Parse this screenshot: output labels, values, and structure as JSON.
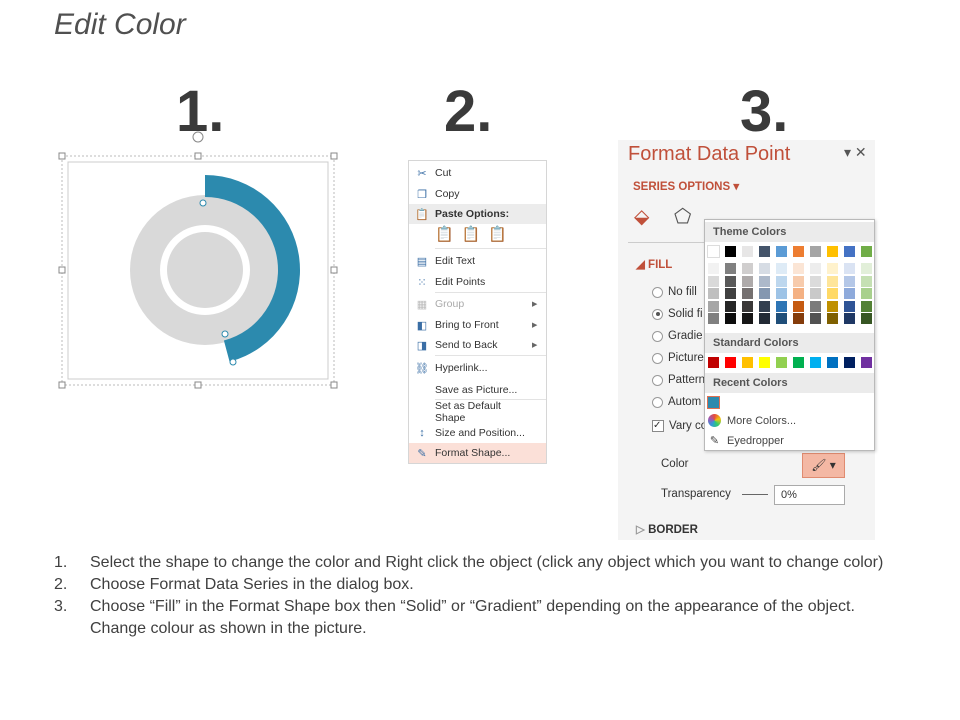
{
  "title": "Edit Color",
  "steps_numbers": [
    "1.",
    "2.",
    "3."
  ],
  "accent": "#2c8aae",
  "context_menu": {
    "items": [
      {
        "label": "Cut",
        "icon": "scissors-icon"
      },
      {
        "label": "Copy",
        "icon": "copy-icon"
      },
      {
        "label": "Paste Options:",
        "icon": "paste-icon",
        "header": true
      },
      {
        "label": "Edit Text",
        "icon": "edit-text-icon"
      },
      {
        "label": "Edit Points",
        "icon": "edit-points-icon"
      },
      {
        "label": "Group",
        "icon": "group-icon",
        "disabled": true,
        "submenu": true
      },
      {
        "label": "Bring to Front",
        "icon": "bring-front-icon",
        "submenu": true
      },
      {
        "label": "Send to Back",
        "icon": "send-back-icon",
        "submenu": true
      },
      {
        "label": "Hyperlink...",
        "icon": "hyperlink-icon"
      },
      {
        "label": "Save as Picture...",
        "icon": ""
      },
      {
        "label": "Set as Default Shape",
        "icon": ""
      },
      {
        "label": "Size and Position...",
        "icon": "size-position-icon"
      },
      {
        "label": "Format Shape...",
        "icon": "format-shape-icon",
        "highlighted": true
      }
    ]
  },
  "format_panel": {
    "title": "Format Data Point",
    "section": "SERIES OPTIONS",
    "fill_label": "FILL",
    "fill_options": [
      "No fill",
      "Solid fi",
      "Gradie",
      "Picture",
      "Pattern",
      "Autom"
    ],
    "selected_fill": 1,
    "vary_label": "Vary co",
    "color_label": "Color",
    "transparency_label": "Transparency",
    "transparency_value": "0%",
    "border_label": "BORDER"
  },
  "palette": {
    "theme_label": "Theme Colors",
    "standard_label": "Standard Colors",
    "recent_label": "Recent Colors",
    "more_colors": "More Colors...",
    "eyedropper": "Eyedropper",
    "theme_top": [
      "#ffffff",
      "#000000",
      "#e7e6e6",
      "#44546a",
      "#5b9bd5",
      "#ed7d31",
      "#a5a5a5",
      "#ffc000",
      "#4472c4",
      "#70ad47"
    ],
    "theme_shades": [
      [
        "#f2f2f2",
        "#d9d9d9",
        "#bfbfbf",
        "#a6a6a6",
        "#808080"
      ],
      [
        "#808080",
        "#595959",
        "#404040",
        "#262626",
        "#0d0d0d"
      ],
      [
        "#d0cece",
        "#aeaaaa",
        "#757070",
        "#3a3838",
        "#171616"
      ],
      [
        "#d6dce4",
        "#adb9ca",
        "#8497b0",
        "#333f4f",
        "#222a35"
      ],
      [
        "#deebf6",
        "#bdd7ee",
        "#9dc3e6",
        "#2e75b5",
        "#1f4e79"
      ],
      [
        "#fbe5d5",
        "#f7cbac",
        "#f4b183",
        "#c55a11",
        "#843c0b"
      ],
      [
        "#ededed",
        "#dbdbdb",
        "#c9c9c9",
        "#7b7b7b",
        "#525252"
      ],
      [
        "#fff2cc",
        "#fee599",
        "#ffd965",
        "#bf9000",
        "#7f6000"
      ],
      [
        "#dae3f3",
        "#b4c7e7",
        "#8eaadb",
        "#2f5496",
        "#1f3864"
      ],
      [
        "#e2efd9",
        "#c5e0b3",
        "#a8d08d",
        "#538135",
        "#375623"
      ]
    ],
    "standard": [
      "#c00000",
      "#ff0000",
      "#ffc000",
      "#ffff00",
      "#92d050",
      "#00b050",
      "#00b0f0",
      "#0070c0",
      "#002060",
      "#7030a0"
    ],
    "recent": [
      "#2c8aae"
    ]
  },
  "instructions": [
    "Select the shape to change the color and Right click the object (click any object which you want to change color)",
    "Choose Format Data Series in the dialog box.",
    "Choose “Fill” in the Format Shape box then “Solid” or “Gradient” depending on the appearance of the object. Change colour as shown in the picture."
  ],
  "instruction_numbers": [
    "1.",
    "2.",
    "3."
  ]
}
